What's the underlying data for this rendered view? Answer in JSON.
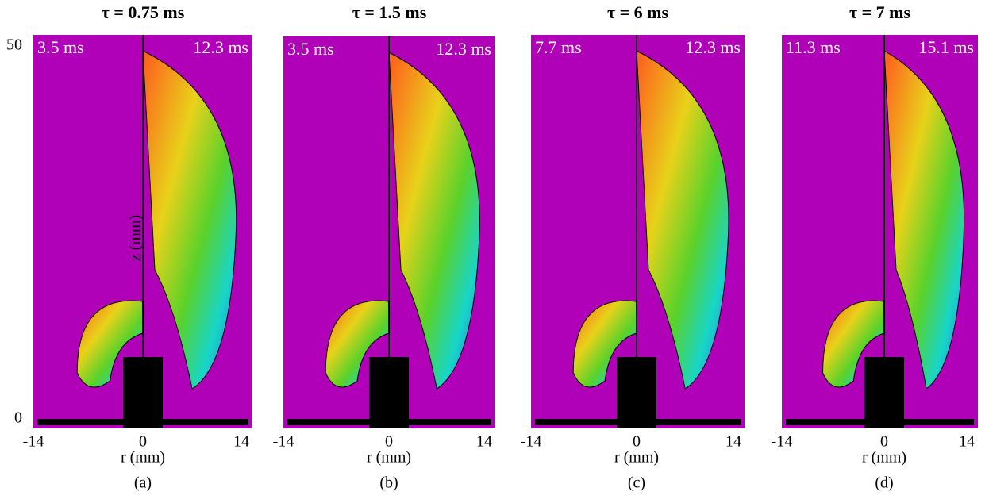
{
  "figure": {
    "y_axis": {
      "label": "z (mm)",
      "ticks": [
        "50",
        "0"
      ]
    },
    "panels": [
      {
        "title": "τ = 0.75 ms",
        "left_time": "3.5 ms",
        "right_time": "12.3 ms",
        "x_label": "r (mm)",
        "x_ticks": [
          "-14",
          "0",
          "14"
        ],
        "label": "(a)"
      },
      {
        "title": "τ = 1.5 ms",
        "left_time": "3.5 ms",
        "right_time": "12.3 ms",
        "x_label": "r (mm)",
        "x_ticks": [
          "-14",
          "0",
          "14"
        ],
        "label": "(b)"
      },
      {
        "title": "τ = 6 ms",
        "left_time": "7.7 ms",
        "right_time": "12.3 ms",
        "x_label": "r (mm)",
        "x_ticks": [
          "-14",
          "0",
          "14"
        ],
        "label": "(c)"
      },
      {
        "title": "τ = 7 ms",
        "left_time": "11.3 ms",
        "right_time": "15.1 ms",
        "x_label": "r (mm)",
        "x_ticks": [
          "-14",
          "0",
          "14"
        ],
        "label": "(d)"
      }
    ]
  }
}
